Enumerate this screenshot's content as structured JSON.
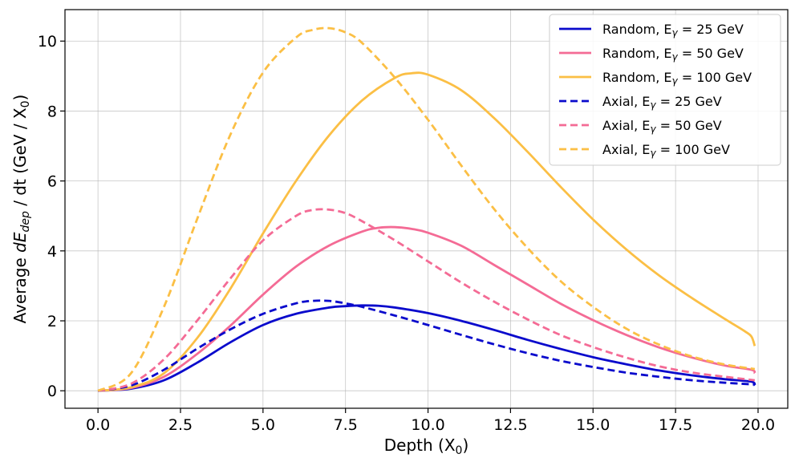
{
  "chart_data": {
    "type": "line",
    "title": "",
    "xlabel": "Depth (X",
    "xlabel_sub": "0",
    "xlabel_tail": ")",
    "ylabel": {
      "prefix": "Average ",
      "italic": "dE",
      "italic_sub": "dep",
      "suffix": " / dt (GeV / X",
      "suffix_sub": "0",
      "tail": ")"
    },
    "xlim": [
      -1.0,
      20.9
    ],
    "ylim": [
      -0.5,
      10.9
    ],
    "x_ticks": [
      0.0,
      2.5,
      5.0,
      7.5,
      10.0,
      12.5,
      15.0,
      17.5,
      20.0
    ],
    "x_tick_labels": [
      "0.0",
      "2.5",
      "5.0",
      "7.5",
      "10.0",
      "12.5",
      "15.0",
      "17.5",
      "20.0"
    ],
    "y_ticks": [
      0,
      2,
      4,
      6,
      8,
      10
    ],
    "y_tick_labels": [
      "0",
      "2",
      "4",
      "6",
      "8",
      "10"
    ],
    "grid": true,
    "legend_position": "top-right",
    "colors": {
      "blue": "#0a0acc",
      "pink": "#f46b95",
      "orange": "#fbbf45"
    },
    "series": [
      {
        "key": "random-25",
        "legend": {
          "prefix": "Random, E",
          "sub": "γ",
          "suffix": " = 25 GeV"
        },
        "color": "#0a0acc",
        "style": "solid",
        "x": [
          0,
          1,
          2,
          3,
          4,
          5,
          6,
          7,
          7.5,
          8,
          8.5,
          9,
          10,
          11,
          12,
          13,
          14,
          15,
          16,
          17,
          18,
          19,
          19.8,
          19.9
        ],
        "y": [
          0,
          0.06,
          0.3,
          0.8,
          1.38,
          1.88,
          2.2,
          2.38,
          2.42,
          2.44,
          2.43,
          2.38,
          2.22,
          2.0,
          1.74,
          1.46,
          1.2,
          0.96,
          0.76,
          0.58,
          0.44,
          0.33,
          0.26,
          0.15
        ]
      },
      {
        "key": "random-50",
        "legend": {
          "prefix": "Random, E",
          "sub": "γ",
          "suffix": " = 50 GeV"
        },
        "color": "#f46b95",
        "style": "solid",
        "x": [
          0,
          1,
          2,
          3,
          4,
          5,
          6,
          7,
          8,
          8.5,
          9,
          9.5,
          10,
          11,
          12,
          13,
          14,
          15,
          16,
          17,
          18,
          19,
          19.8,
          19.9
        ],
        "y": [
          0,
          0.08,
          0.4,
          1.05,
          1.85,
          2.75,
          3.55,
          4.15,
          4.55,
          4.66,
          4.68,
          4.63,
          4.52,
          4.15,
          3.6,
          3.05,
          2.5,
          2.02,
          1.6,
          1.24,
          0.95,
          0.72,
          0.6,
          0.5
        ]
      },
      {
        "key": "random-100",
        "legend": {
          "prefix": "Random, E",
          "sub": "γ",
          "suffix": " = 100 GeV"
        },
        "color": "#fbbf45",
        "style": "solid",
        "x": [
          0,
          1,
          2,
          3,
          4,
          5,
          6,
          7,
          8,
          9,
          9.5,
          10,
          11,
          12,
          13,
          14,
          15,
          16,
          17,
          18,
          19,
          19.6,
          19.8,
          19.9
        ],
        "y": [
          0,
          0.1,
          0.5,
          1.5,
          2.9,
          4.5,
          6.0,
          7.3,
          8.3,
          8.95,
          9.08,
          9.04,
          8.6,
          7.8,
          6.85,
          5.85,
          4.9,
          4.05,
          3.3,
          2.65,
          2.05,
          1.7,
          1.55,
          1.28
        ]
      },
      {
        "key": "axial-25",
        "legend": {
          "prefix": "Axial, E",
          "sub": "γ",
          "suffix": " = 25 GeV"
        },
        "color": "#0a0acc",
        "style": "dashed",
        "x": [
          0,
          1,
          2,
          3,
          4,
          5,
          6,
          6.5,
          7,
          7.5,
          8,
          9,
          10,
          11,
          12,
          13,
          14,
          15,
          16,
          17,
          18,
          19,
          19.9
        ],
        "y": [
          0,
          0.15,
          0.6,
          1.2,
          1.75,
          2.2,
          2.5,
          2.57,
          2.57,
          2.5,
          2.4,
          2.15,
          1.88,
          1.6,
          1.33,
          1.08,
          0.86,
          0.68,
          0.52,
          0.4,
          0.3,
          0.23,
          0.18
        ]
      },
      {
        "key": "axial-50",
        "legend": {
          "prefix": "Axial, E",
          "sub": "γ",
          "suffix": " = 50 GeV"
        },
        "color": "#f46b95",
        "style": "dashed",
        "x": [
          0,
          1,
          2,
          3,
          4,
          5,
          6,
          6.5,
          7,
          7.5,
          8,
          9,
          10,
          11,
          12,
          13,
          14,
          15,
          16,
          17,
          18,
          19,
          19.9
        ],
        "y": [
          0,
          0.2,
          0.9,
          2.0,
          3.2,
          4.3,
          5.0,
          5.17,
          5.18,
          5.08,
          4.85,
          4.3,
          3.7,
          3.1,
          2.55,
          2.05,
          1.6,
          1.25,
          0.95,
          0.7,
          0.52,
          0.4,
          0.3
        ]
      },
      {
        "key": "axial-100",
        "legend": {
          "prefix": "Axial, E",
          "sub": "γ",
          "suffix": " = 100 GeV"
        },
        "color": "#fbbf45",
        "style": "dashed",
        "x": [
          0,
          1,
          2,
          3,
          4,
          5,
          6,
          6.5,
          7,
          7.5,
          8,
          9,
          10,
          11,
          12,
          13,
          14,
          15,
          16,
          17,
          18,
          19,
          19.9
        ],
        "y": [
          0,
          0.5,
          2.4,
          4.9,
          7.3,
          9.1,
          10.1,
          10.32,
          10.37,
          10.25,
          9.95,
          8.95,
          7.75,
          6.45,
          5.2,
          4.1,
          3.15,
          2.4,
          1.78,
          1.32,
          0.98,
          0.75,
          0.62
        ]
      }
    ]
  }
}
